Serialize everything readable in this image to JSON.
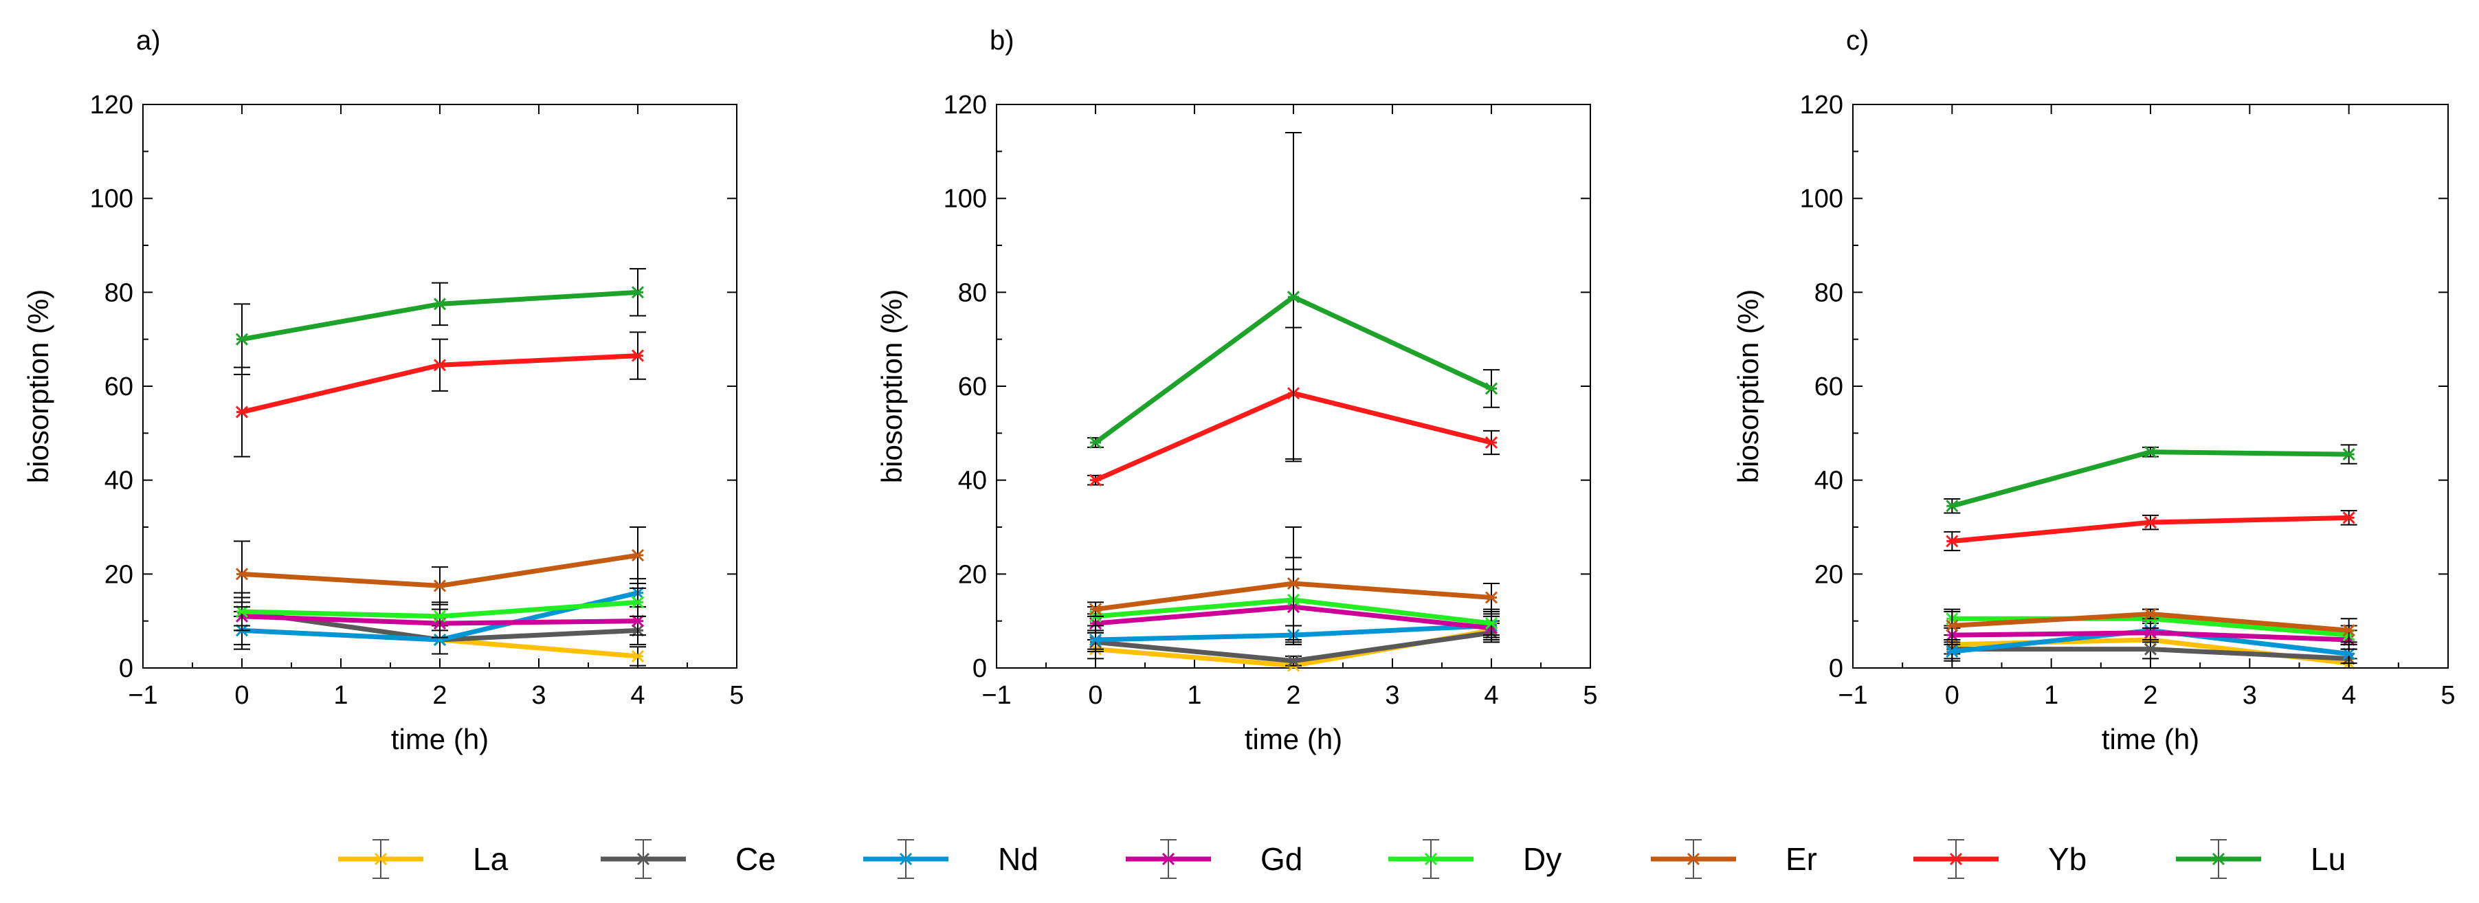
{
  "legend": [
    {
      "name": "La",
      "color": "#FFC000"
    },
    {
      "name": "Ce",
      "color": "#595959"
    },
    {
      "name": "Nd",
      "color": "#0096D6"
    },
    {
      "name": "Gd",
      "color": "#CC0099"
    },
    {
      "name": "Dy",
      "color": "#22EE22"
    },
    {
      "name": "Er",
      "color": "#C55A11"
    },
    {
      "name": "Yb",
      "color": "#FF1A1A"
    },
    {
      "name": "Lu",
      "color": "#1DA32A"
    }
  ],
  "chart_data": [
    {
      "type": "line",
      "title": "a)",
      "xlabel": "time (h)",
      "ylabel": "biosorption (%)",
      "xlim": [
        -1,
        5
      ],
      "ylim": [
        0,
        120
      ],
      "xticks": [
        "−1",
        "0",
        "1",
        "2",
        "3",
        "4",
        "5"
      ],
      "yticks": [
        "0",
        "20",
        "40",
        "60",
        "80",
        "100",
        "120"
      ],
      "grid": false,
      "x": [
        0,
        2,
        4
      ],
      "series": [
        {
          "name": "La",
          "values": [
            8,
            6,
            2.5
          ],
          "errors": [
            4,
            3,
            2
          ]
        },
        {
          "name": "Ce",
          "values": [
            12,
            6,
            8
          ],
          "errors": [
            4,
            3,
            3
          ]
        },
        {
          "name": "Nd",
          "values": [
            8,
            6,
            16
          ],
          "errors": [
            3,
            3,
            3
          ]
        },
        {
          "name": "Gd",
          "values": [
            11,
            9.5,
            10
          ],
          "errors": [
            3,
            3,
            3
          ]
        },
        {
          "name": "Dy",
          "values": [
            12,
            11,
            14
          ],
          "errors": [
            3,
            3,
            3
          ]
        },
        {
          "name": "Er",
          "values": [
            20,
            17.5,
            24
          ],
          "errors": [
            7,
            4,
            6
          ]
        },
        {
          "name": "Yb",
          "values": [
            54.5,
            64.5,
            66.5
          ],
          "errors": [
            9.5,
            5.5,
            5
          ]
        },
        {
          "name": "Lu",
          "values": [
            70,
            77.5,
            80
          ],
          "errors": [
            7.5,
            4.5,
            5
          ]
        }
      ]
    },
    {
      "type": "line",
      "title": "b)",
      "xlabel": "time (h)",
      "ylabel": "biosorption (%)",
      "xlim": [
        -1,
        5
      ],
      "ylim": [
        0,
        120
      ],
      "xticks": [
        "−1",
        "0",
        "1",
        "2",
        "3",
        "4",
        "5"
      ],
      "yticks": [
        "0",
        "20",
        "40",
        "60",
        "80",
        "100",
        "120"
      ],
      "grid": false,
      "x": [
        0,
        2,
        4
      ],
      "series": [
        {
          "name": "La",
          "values": [
            4,
            0.5,
            8
          ],
          "errors": [
            2,
            1,
            2
          ]
        },
        {
          "name": "Ce",
          "values": [
            5.5,
            1.5,
            7.5
          ],
          "errors": [
            2,
            1,
            2
          ]
        },
        {
          "name": "Nd",
          "values": [
            6,
            7,
            9
          ],
          "errors": [
            2,
            2,
            2
          ]
        },
        {
          "name": "Gd",
          "values": [
            9.5,
            13,
            8.5
          ],
          "errors": [
            2,
            8,
            3
          ]
        },
        {
          "name": "Dy",
          "values": [
            11,
            14.5,
            9.5
          ],
          "errors": [
            2,
            9,
            3
          ]
        },
        {
          "name": "Er",
          "values": [
            12.5,
            18,
            15
          ],
          "errors": [
            1.5,
            12,
            3
          ]
        },
        {
          "name": "Yb",
          "values": [
            40,
            58.5,
            48
          ],
          "errors": [
            1,
            14,
            2.5
          ]
        },
        {
          "name": "Lu",
          "values": [
            48,
            79,
            59.5
          ],
          "errors": [
            1,
            35,
            4
          ]
        }
      ]
    },
    {
      "type": "line",
      "title": "c)",
      "xlabel": "time (h)",
      "ylabel": "biosorption (%)",
      "xlim": [
        -1,
        5
      ],
      "ylim": [
        0,
        120
      ],
      "xticks": [
        "−1",
        "0",
        "1",
        "2",
        "3",
        "4",
        "5"
      ],
      "yticks": [
        "0",
        "20",
        "40",
        "60",
        "80",
        "100",
        "120"
      ],
      "grid": false,
      "x": [
        0,
        2,
        4
      ],
      "series": [
        {
          "name": "La",
          "values": [
            5,
            6,
            1
          ],
          "errors": [
            2,
            2,
            1
          ]
        },
        {
          "name": "Ce",
          "values": [
            4,
            4,
            2
          ],
          "errors": [
            2,
            2,
            2
          ]
        },
        {
          "name": "Nd",
          "values": [
            3.5,
            8,
            3
          ],
          "errors": [
            2,
            2,
            2
          ]
        },
        {
          "name": "Gd",
          "values": [
            7,
            7.5,
            6
          ],
          "errors": [
            2,
            2,
            2
          ]
        },
        {
          "name": "Dy",
          "values": [
            10.5,
            10.5,
            7
          ],
          "errors": [
            2,
            2,
            2
          ]
        },
        {
          "name": "Er",
          "values": [
            9,
            11.5,
            8
          ],
          "errors": [
            3,
            1,
            2.5
          ]
        },
        {
          "name": "Yb",
          "values": [
            27,
            31,
            32
          ],
          "errors": [
            2,
            1.5,
            1.5
          ]
        },
        {
          "name": "Lu",
          "values": [
            34.5,
            46,
            45.5
          ],
          "errors": [
            1.5,
            1,
            2
          ]
        }
      ]
    }
  ]
}
